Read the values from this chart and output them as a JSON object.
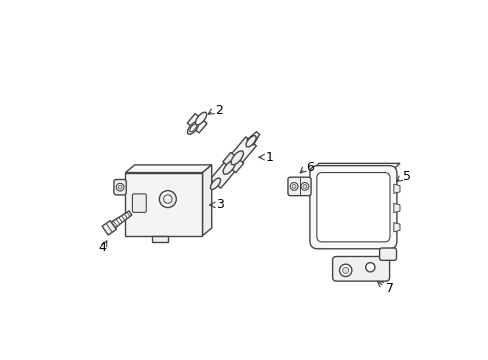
{
  "bg_color": "#ffffff",
  "line_color": "#444444",
  "label_color": "#000000",
  "figsize": [
    4.89,
    3.6
  ],
  "dpi": 100,
  "labels": [
    "1",
    "2",
    "3",
    "4",
    "5",
    "6",
    "7"
  ]
}
